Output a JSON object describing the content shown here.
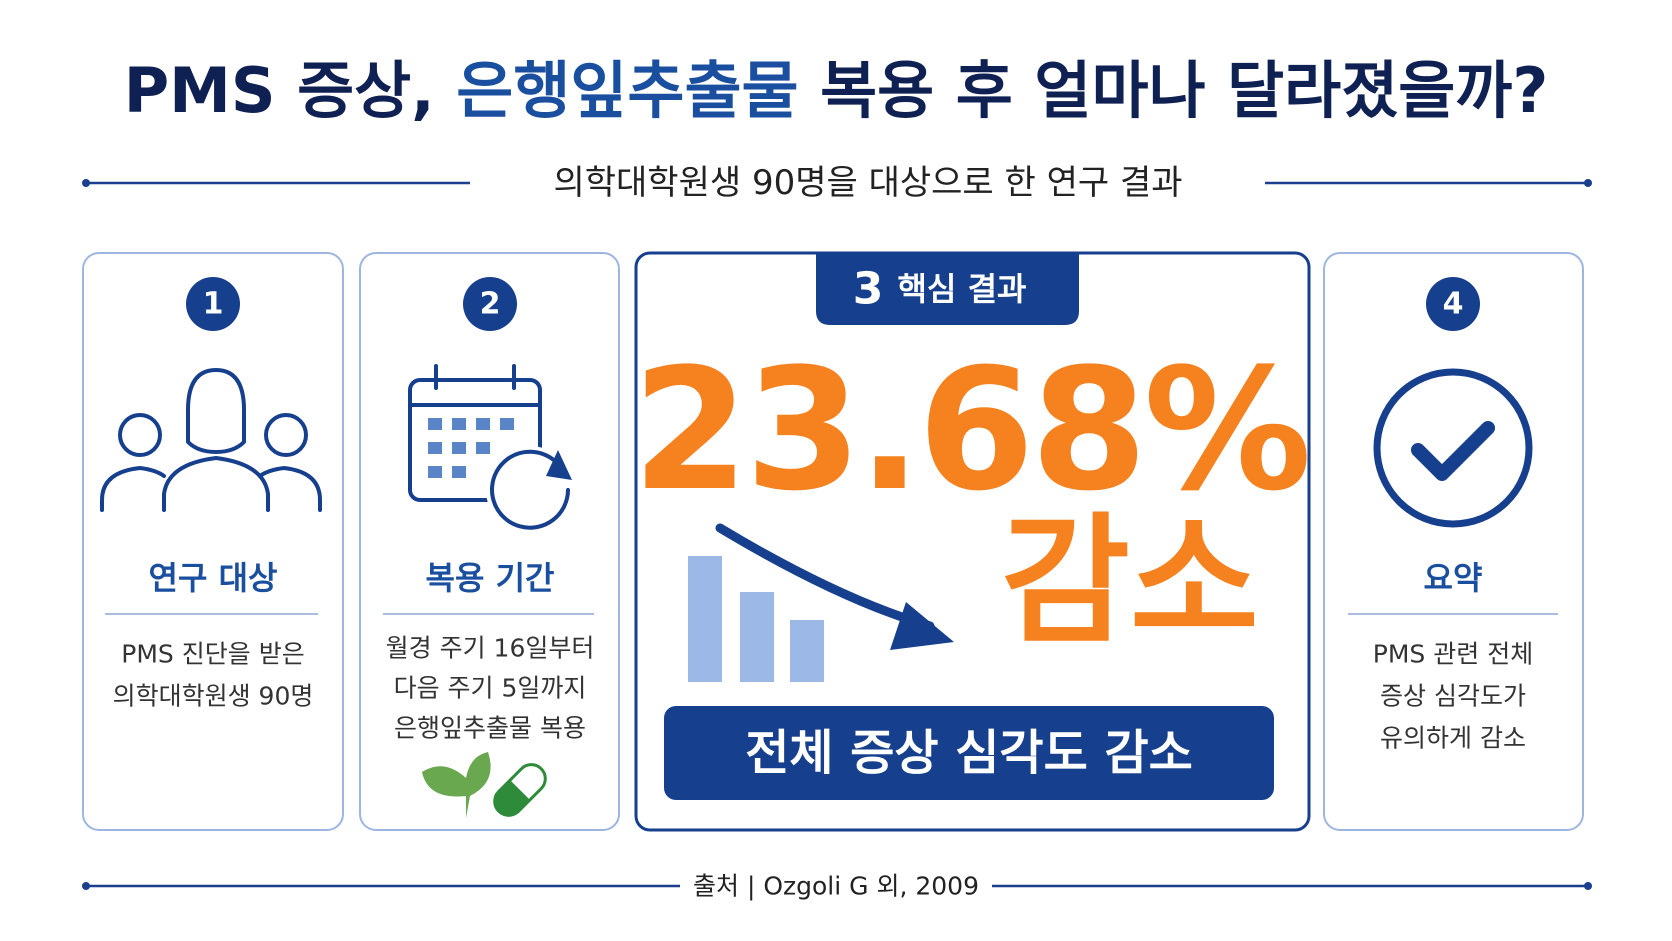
{
  "title": {
    "prefix": "PMS 증상,",
    "highlight": "은행잎추출물",
    "suffix": "복용 후 얼마나 달라졌을까?"
  },
  "subtitle": "의학대학원생 90명을 대상으로 한 연구 결과",
  "cards": [
    {
      "number": "1",
      "heading": "연구 대상",
      "body": [
        "PMS 진단을 받은",
        "의학대학원생 90명"
      ]
    },
    {
      "number": "2",
      "heading": "복용 기간",
      "body": [
        "월경 주기 16일부터",
        "다음 주기 5일까지",
        "은행잎추출물 복용"
      ]
    },
    {
      "number": "3",
      "heading": "핵심 결과",
      "figure": "23.68%",
      "change": "감소",
      "summary": "전체 증상 심각도 감소"
    },
    {
      "number": "4",
      "heading": "요약",
      "body": [
        "PMS 관련 전체",
        "증상 심각도가",
        "유의하게 감소"
      ]
    }
  ],
  "source": "출처 | Ozgoli G 외, 2009"
}
